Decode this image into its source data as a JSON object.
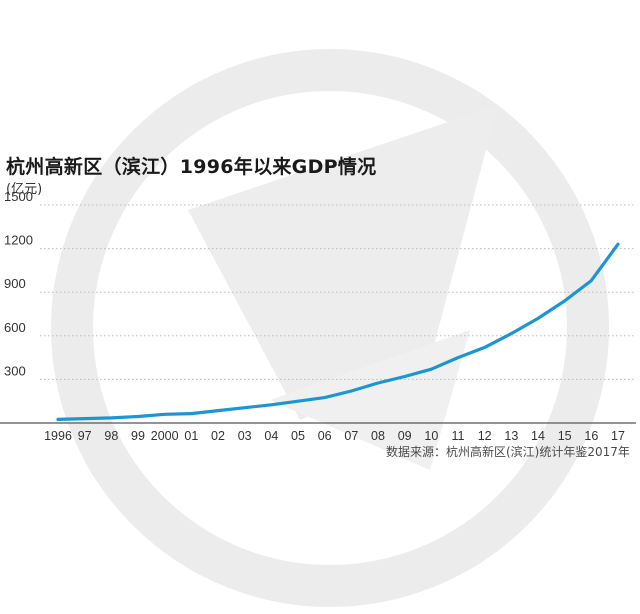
{
  "chart_data": {
    "type": "line",
    "title": "杭州高新区（滨江）1996年以来GDP情况",
    "ylabel": "(亿元)",
    "xlabel": "",
    "categories": [
      "1996",
      "97",
      "98",
      "99",
      "2000",
      "01",
      "02",
      "03",
      "04",
      "05",
      "06",
      "07",
      "08",
      "09",
      "10",
      "11",
      "12",
      "13",
      "14",
      "15",
      "16",
      "17"
    ],
    "series": [
      {
        "values": [
          25,
          30,
          35,
          45,
          60,
          65,
          85,
          105,
          125,
          150,
          175,
          220,
          275,
          320,
          370,
          450,
          520,
          615,
          720,
          840,
          980,
          1230
        ]
      }
    ],
    "yticks": [
      300,
      600,
      900,
      1200,
      1500
    ],
    "ylim": [
      0,
      1500
    ],
    "grid": "horizontal-dotted",
    "note": "数据来源：杭州高新区(滨江)统计年鉴2017年",
    "colors": {
      "line": "#1b96d2",
      "grid": "#bdbdbd",
      "axis": "#555555",
      "watermark": "#ededed"
    }
  }
}
